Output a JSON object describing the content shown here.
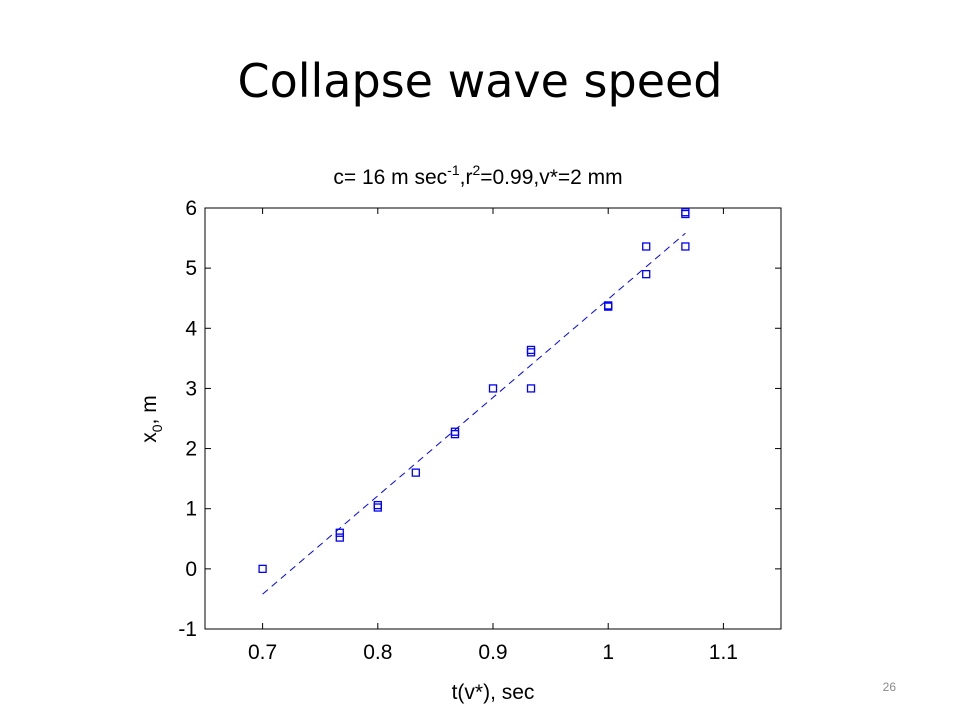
{
  "slide": {
    "title": "Collapse wave speed",
    "page_number": "26"
  },
  "chart_data": {
    "type": "scatter",
    "title_parts": {
      "prefix": "c= 16 m sec",
      "sup1": "-1",
      "mid": ",r",
      "sup2": "2",
      "suffix": "=0.99,v*=2 mm"
    },
    "xlabel": "t(v*), sec",
    "ylabel_parts": {
      "base": "x",
      "sub": "0",
      "suffix": ", m"
    },
    "xlim": [
      0.65,
      1.15
    ],
    "ylim": [
      -1,
      6
    ],
    "xticks": [
      0.7,
      0.8,
      0.9,
      1.0,
      1.1
    ],
    "xtick_labels": [
      "0.7",
      "0.8",
      "0.9",
      "1",
      "1.1"
    ],
    "yticks": [
      -1,
      0,
      1,
      2,
      3,
      4,
      5,
      6
    ],
    "ytick_labels": [
      "-1",
      "0",
      "1",
      "2",
      "3",
      "4",
      "5",
      "6"
    ],
    "grid": false,
    "marker_color": "#0000ff",
    "series": [
      {
        "kind": "markers",
        "marker": "square",
        "points": [
          [
            0.7,
            0.0
          ],
          [
            0.767,
            0.52
          ],
          [
            0.767,
            0.6
          ],
          [
            0.8,
            1.02
          ],
          [
            0.8,
            1.06
          ],
          [
            0.833,
            1.6
          ],
          [
            0.867,
            2.24
          ],
          [
            0.867,
            2.28
          ],
          [
            0.9,
            3.0
          ],
          [
            0.933,
            3.0
          ],
          [
            0.933,
            3.6
          ],
          [
            0.933,
            3.64
          ],
          [
            1.0,
            4.36
          ],
          [
            1.0,
            4.38
          ],
          [
            1.033,
            4.9
          ],
          [
            1.033,
            5.36
          ],
          [
            1.067,
            5.36
          ],
          [
            1.067,
            5.9
          ],
          [
            1.067,
            5.93
          ]
        ]
      },
      {
        "kind": "fit-line",
        "style": "dashed",
        "points": [
          [
            0.7,
            -0.42
          ],
          [
            1.067,
            5.58
          ]
        ]
      }
    ]
  }
}
